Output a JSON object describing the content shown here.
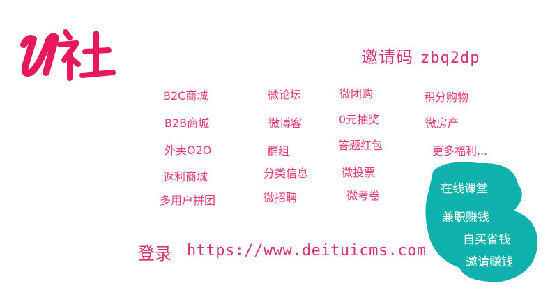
{
  "brand": {
    "logo_text": "U社",
    "color": "#e8195a"
  },
  "invite": {
    "label": "邀请码",
    "code": "zbq2dp"
  },
  "features": [
    "B2C商城",
    "微论坛",
    "微团购",
    "积分购物",
    "B2B商城",
    "微博客",
    "0元抽奖",
    "微房产",
    "外卖O2O",
    "群组",
    "答题红包",
    "更多福利...",
    "返利商城",
    "分类信息",
    "微投票",
    "多用户拼团",
    "微招聘",
    "微考卷"
  ],
  "teal_blob": {
    "color": "#0fb1ac",
    "items": [
      "在线课堂",
      "兼职赚钱",
      "自买省钱",
      "邀请赚钱"
    ]
  },
  "login": {
    "label": "登录",
    "url": "https://www.deituicms.com"
  }
}
